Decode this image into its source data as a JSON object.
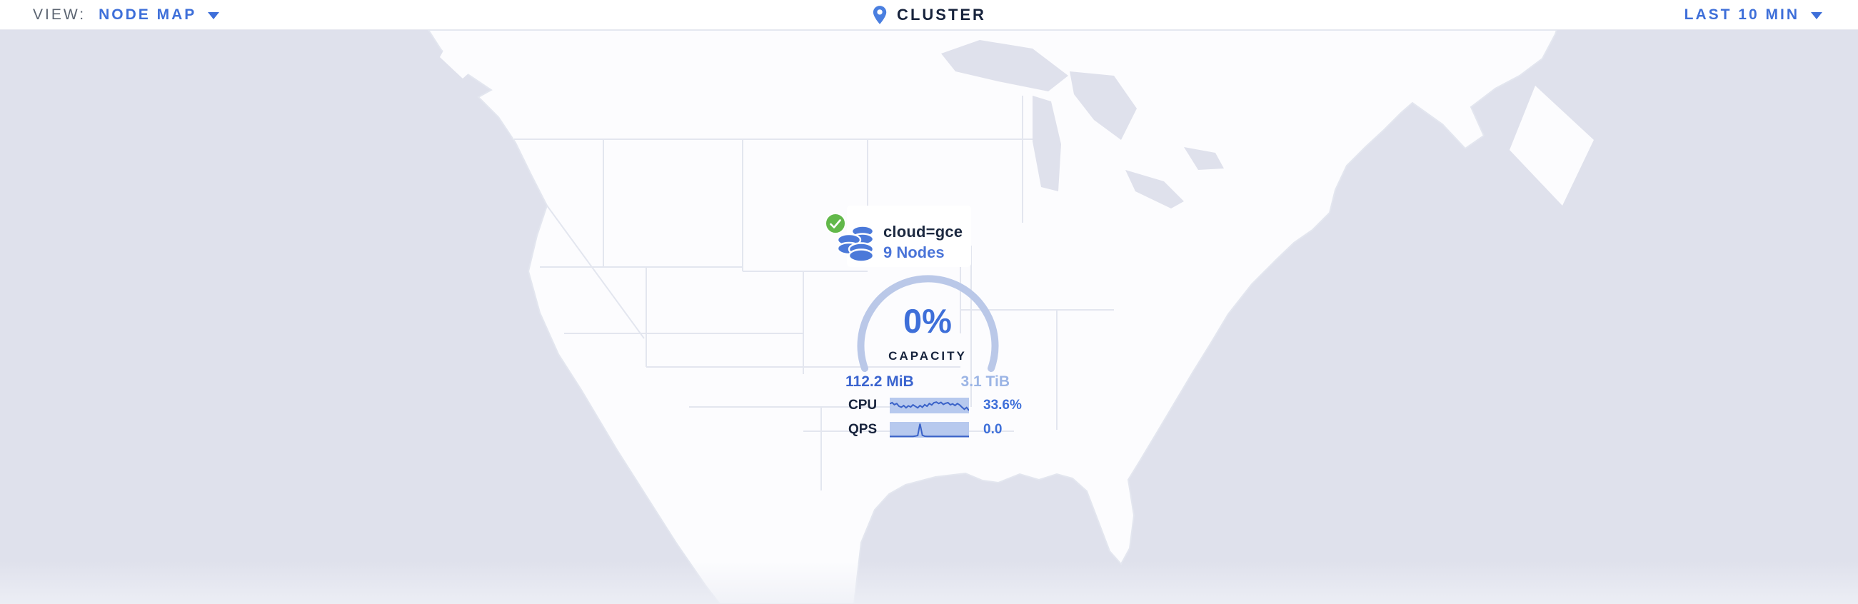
{
  "topbar": {
    "view_label": "VIEW:",
    "view_value": "NODE MAP",
    "cluster_label": "CLUSTER",
    "time_range": "LAST 10 MIN"
  },
  "marker": {
    "locality": "cloud=gce",
    "nodes": "9 Nodes",
    "status": "healthy"
  },
  "gauge": {
    "percent": "0%",
    "label": "CAPACITY",
    "used": "112.2 MiB",
    "total": "3.1 TiB"
  },
  "metrics": {
    "cpu": {
      "label": "CPU",
      "value": "33.6%",
      "spark": [
        0.38,
        0.3,
        0.44,
        0.36,
        0.55,
        0.62,
        0.5,
        0.66,
        0.52,
        0.6,
        0.45,
        0.56,
        0.66,
        0.5,
        0.62,
        0.44,
        0.55,
        0.36,
        0.46,
        0.3,
        0.26,
        0.36,
        0.28,
        0.42,
        0.34,
        0.3,
        0.45,
        0.38,
        0.5,
        0.36,
        0.46,
        0.62,
        0.76,
        0.64,
        0.85
      ]
    },
    "qps": {
      "label": "QPS",
      "value": "0.0",
      "spark": [
        0.96,
        0.96,
        0.96,
        0.96,
        0.96,
        0.96,
        0.96,
        0.96,
        0.96,
        0.96,
        0.96,
        0.94,
        0.9,
        0.08,
        0.88,
        0.95,
        0.96,
        0.96,
        0.96,
        0.96,
        0.96,
        0.96,
        0.96,
        0.96,
        0.96,
        0.96,
        0.96,
        0.96,
        0.96,
        0.96,
        0.96,
        0.96,
        0.96,
        0.96,
        0.96
      ]
    }
  },
  "colors": {
    "accent_blue": "#3e6fd9",
    "link_blue": "#4a74d8",
    "dark_text": "#17233c",
    "muted_text": "#5c6572",
    "green_ok": "#62b84a",
    "db_icon_blue": "#4b79d9",
    "gauge_arc": "#bac8e8",
    "capacity_used": "#3a64cf",
    "capacity_total": "#9cb5e5",
    "spark_bg": "#b7c9ee",
    "spark_line": "#3a62c8",
    "ocean": "#dfe1ec",
    "land": "#fcfcfe",
    "state_border": "#e3e6ef",
    "topbar_border": "#e7e9f0"
  }
}
